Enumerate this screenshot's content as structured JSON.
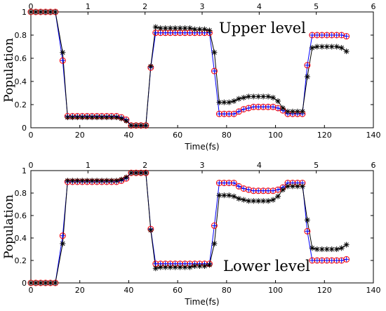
{
  "chart_data": [
    {
      "type": "line",
      "title": "Upper level",
      "xlabel": "Time(fs)",
      "ylabel": "Population",
      "xlim": [
        0,
        140
      ],
      "ylim": [
        0,
        1
      ],
      "xticks": [
        "0",
        "20",
        "40",
        "60",
        "80",
        "100",
        "120",
        "140"
      ],
      "yticks": [
        "0",
        "0.2",
        "0.4",
        "0.6",
        "0.8",
        "1"
      ],
      "top_xlim": [
        0,
        6
      ],
      "top_xticks": [
        "0",
        "1",
        "2",
        "3",
        "4",
        "5",
        "6"
      ],
      "x": [
        0,
        2,
        4,
        6,
        8,
        10,
        13,
        15,
        17,
        19,
        21,
        23,
        25,
        27,
        29,
        31,
        33,
        35,
        37,
        39,
        41,
        43,
        45,
        47,
        49,
        51,
        53,
        55,
        57,
        59,
        61,
        63,
        65,
        67,
        69,
        71,
        73,
        75,
        77,
        79,
        81,
        83,
        85,
        87,
        89,
        91,
        93,
        95,
        97,
        99,
        101,
        103,
        105,
        107,
        109,
        111,
        113,
        115,
        117,
        119,
        121,
        123,
        125,
        127,
        129
      ],
      "series": [
        {
          "marker": "circle",
          "color": "#ff0000",
          "values": [
            1,
            1,
            1,
            1,
            1,
            1,
            0.58,
            0.1,
            0.1,
            0.1,
            0.1,
            0.1,
            0.1,
            0.1,
            0.1,
            0.1,
            0.1,
            0.1,
            0.09,
            0.07,
            0.02,
            0.02,
            0.02,
            0.02,
            0.52,
            0.82,
            0.82,
            0.82,
            0.82,
            0.82,
            0.82,
            0.82,
            0.82,
            0.82,
            0.82,
            0.82,
            0.82,
            0.49,
            0.12,
            0.12,
            0.12,
            0.12,
            0.14,
            0.16,
            0.17,
            0.18,
            0.18,
            0.18,
            0.18,
            0.18,
            0.17,
            0.15,
            0.12,
            0.12,
            0.12,
            0.12,
            0.54,
            0.8,
            0.8,
            0.8,
            0.8,
            0.8,
            0.8,
            0.8,
            0.79
          ]
        },
        {
          "marker": "plus",
          "color": "#0000ff",
          "values": [
            1,
            1,
            1,
            1,
            1,
            1,
            0.58,
            0.1,
            0.1,
            0.1,
            0.1,
            0.1,
            0.1,
            0.1,
            0.1,
            0.1,
            0.1,
            0.1,
            0.09,
            0.07,
            0.02,
            0.02,
            0.02,
            0.02,
            0.52,
            0.82,
            0.82,
            0.82,
            0.82,
            0.82,
            0.82,
            0.82,
            0.82,
            0.82,
            0.82,
            0.82,
            0.82,
            0.49,
            0.12,
            0.12,
            0.12,
            0.12,
            0.14,
            0.16,
            0.17,
            0.18,
            0.18,
            0.18,
            0.18,
            0.18,
            0.17,
            0.15,
            0.12,
            0.12,
            0.12,
            0.12,
            0.54,
            0.8,
            0.8,
            0.8,
            0.8,
            0.8,
            0.8,
            0.8,
            0.79
          ]
        },
        {
          "marker": "star",
          "color": "#000000",
          "values": [
            1,
            1,
            1,
            1,
            1,
            1,
            0.65,
            0.09,
            0.09,
            0.09,
            0.09,
            0.09,
            0.09,
            0.09,
            0.09,
            0.09,
            0.09,
            0.09,
            0.08,
            0.06,
            0.02,
            0.02,
            0.02,
            0.02,
            0.53,
            0.87,
            0.86,
            0.86,
            0.86,
            0.86,
            0.86,
            0.86,
            0.86,
            0.85,
            0.85,
            0.85,
            0.84,
            0.65,
            0.22,
            0.22,
            0.22,
            0.23,
            0.25,
            0.26,
            0.27,
            0.27,
            0.27,
            0.27,
            0.27,
            0.26,
            0.23,
            0.17,
            0.14,
            0.14,
            0.14,
            0.14,
            0.44,
            0.69,
            0.7,
            0.7,
            0.7,
            0.7,
            0.7,
            0.69,
            0.66
          ]
        }
      ]
    },
    {
      "type": "line",
      "title": "Lower level",
      "xlabel": "Time(fs)",
      "ylabel": "Population",
      "xlim": [
        0,
        140
      ],
      "ylim": [
        0,
        1
      ],
      "xticks": [
        "0",
        "20",
        "40",
        "60",
        "80",
        "100",
        "120",
        "140"
      ],
      "yticks": [
        "0",
        "0.2",
        "0.4",
        "0.6",
        "0.8",
        "1"
      ],
      "top_xlim": [
        0,
        6
      ],
      "top_xticks": [
        "0",
        "1",
        "2",
        "3",
        "4",
        "5",
        "6"
      ],
      "x": [
        0,
        2,
        4,
        6,
        8,
        10,
        13,
        15,
        17,
        19,
        21,
        23,
        25,
        27,
        29,
        31,
        33,
        35,
        37,
        39,
        41,
        43,
        45,
        47,
        49,
        51,
        53,
        55,
        57,
        59,
        61,
        63,
        65,
        67,
        69,
        71,
        73,
        75,
        77,
        79,
        81,
        83,
        85,
        87,
        89,
        91,
        93,
        95,
        97,
        99,
        101,
        103,
        105,
        107,
        109,
        111,
        113,
        115,
        117,
        119,
        121,
        123,
        125,
        127,
        129
      ],
      "series": [
        {
          "marker": "circle",
          "color": "#ff0000",
          "values": [
            0,
            0,
            0,
            0,
            0,
            0,
            0.42,
            0.9,
            0.9,
            0.9,
            0.9,
            0.9,
            0.9,
            0.9,
            0.9,
            0.9,
            0.9,
            0.9,
            0.91,
            0.93,
            0.98,
            0.98,
            0.98,
            0.98,
            0.48,
            0.17,
            0.17,
            0.17,
            0.17,
            0.17,
            0.17,
            0.17,
            0.17,
            0.17,
            0.17,
            0.17,
            0.17,
            0.51,
            0.89,
            0.89,
            0.89,
            0.89,
            0.86,
            0.84,
            0.83,
            0.82,
            0.82,
            0.82,
            0.82,
            0.82,
            0.83,
            0.85,
            0.89,
            0.89,
            0.89,
            0.89,
            0.46,
            0.2,
            0.2,
            0.2,
            0.2,
            0.2,
            0.2,
            0.2,
            0.21
          ]
        },
        {
          "marker": "plus",
          "color": "#0000ff",
          "values": [
            0,
            0,
            0,
            0,
            0,
            0,
            0.42,
            0.9,
            0.9,
            0.9,
            0.9,
            0.9,
            0.9,
            0.9,
            0.9,
            0.9,
            0.9,
            0.9,
            0.91,
            0.93,
            0.98,
            0.98,
            0.98,
            0.98,
            0.48,
            0.17,
            0.17,
            0.17,
            0.17,
            0.17,
            0.17,
            0.17,
            0.17,
            0.17,
            0.17,
            0.17,
            0.17,
            0.51,
            0.89,
            0.89,
            0.89,
            0.89,
            0.86,
            0.84,
            0.83,
            0.82,
            0.82,
            0.82,
            0.82,
            0.82,
            0.83,
            0.85,
            0.89,
            0.89,
            0.89,
            0.89,
            0.46,
            0.2,
            0.2,
            0.2,
            0.2,
            0.2,
            0.2,
            0.2,
            0.21
          ]
        },
        {
          "marker": "star",
          "color": "#000000",
          "values": [
            0,
            0,
            0,
            0,
            0,
            0,
            0.35,
            0.91,
            0.91,
            0.91,
            0.91,
            0.91,
            0.91,
            0.91,
            0.91,
            0.91,
            0.91,
            0.91,
            0.92,
            0.94,
            0.98,
            0.98,
            0.98,
            0.98,
            0.47,
            0.13,
            0.14,
            0.14,
            0.14,
            0.14,
            0.14,
            0.14,
            0.14,
            0.15,
            0.15,
            0.15,
            0.16,
            0.35,
            0.78,
            0.78,
            0.78,
            0.77,
            0.75,
            0.74,
            0.73,
            0.73,
            0.73,
            0.73,
            0.73,
            0.74,
            0.77,
            0.83,
            0.86,
            0.86,
            0.86,
            0.86,
            0.56,
            0.31,
            0.3,
            0.3,
            0.3,
            0.3,
            0.3,
            0.31,
            0.34
          ]
        }
      ]
    }
  ]
}
